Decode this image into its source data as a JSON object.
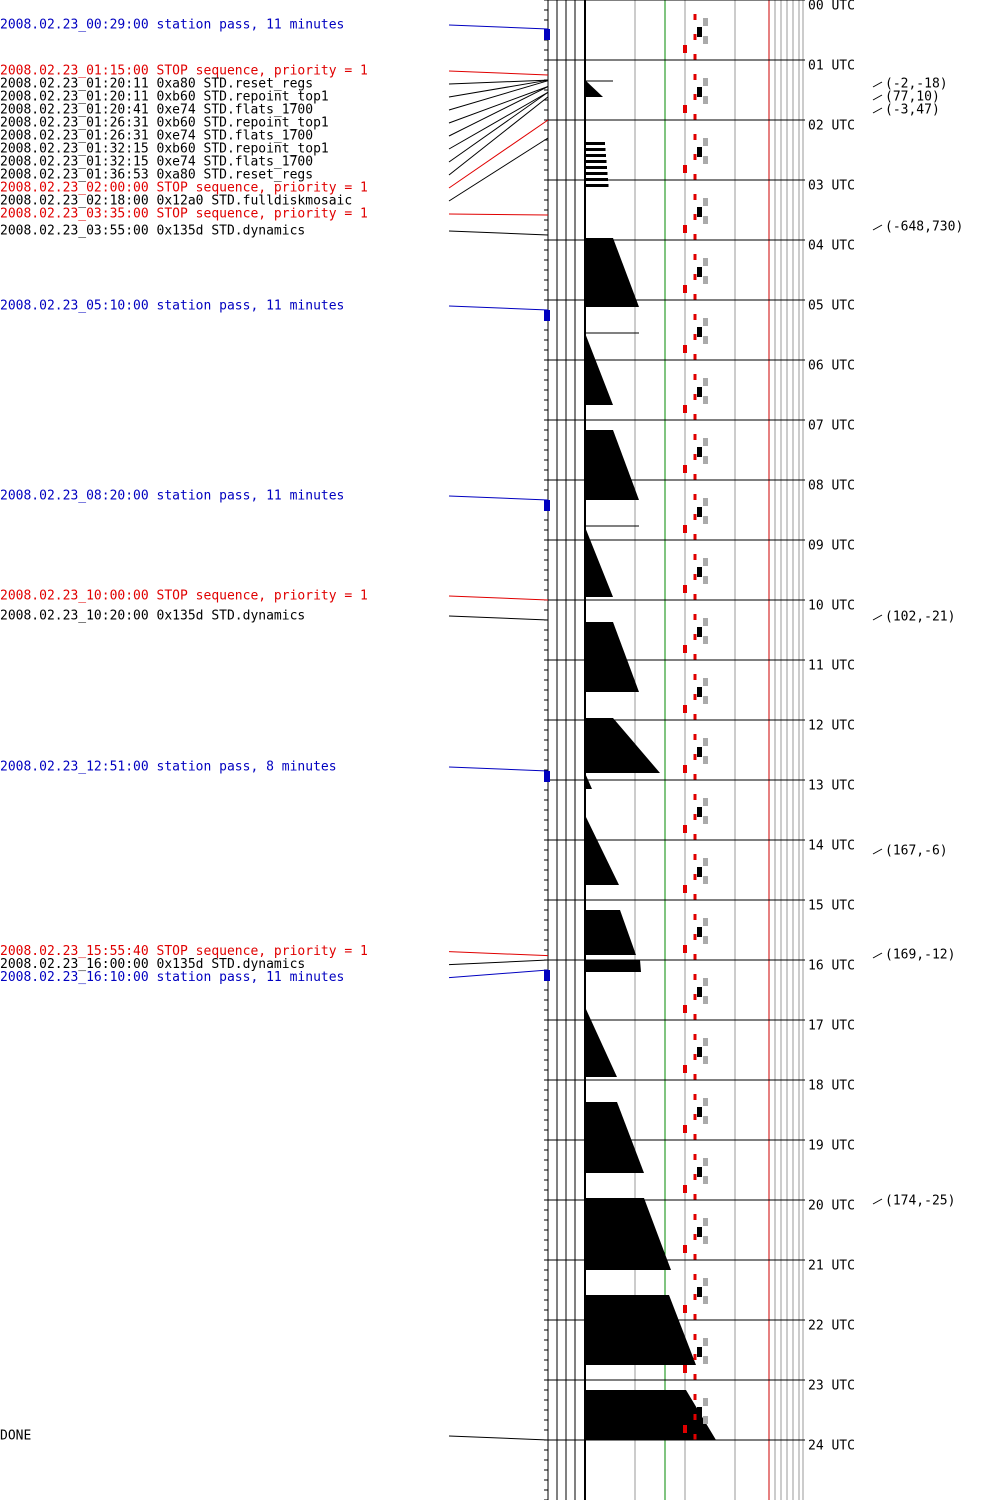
{
  "events": [
    {
      "text": "2008.02.23_00:29:00 station pass, 11 minutes",
      "color": "#0000c0"
    },
    {
      "text": "2008.02.23_01:15:00 STOP sequence, priority = 1",
      "color": "#e00000"
    },
    {
      "text": "2008.02.23_01:20:11  0xa80 STD.reset_regs",
      "color": "#000000"
    },
    {
      "text": "2008.02.23_01:20:11  0xb60 STD.repoint_top1",
      "color": "#000000"
    },
    {
      "text": "2008.02.23_01:20:41  0xe74 STD.flats_1700",
      "color": "#000000"
    },
    {
      "text": "2008.02.23_01:26:31  0xb60 STD.repoint_top1",
      "color": "#000000"
    },
    {
      "text": "2008.02.23_01:26:31  0xe74 STD.flats_1700",
      "color": "#000000"
    },
    {
      "text": "2008.02.23_01:32:15  0xb60 STD.repoint_top1",
      "color": "#000000"
    },
    {
      "text": "2008.02.23_01:32:15  0xe74 STD.flats_1700",
      "color": "#000000"
    },
    {
      "text": "2008.02.23_01:36:53  0xa80 STD.reset_regs",
      "color": "#000000"
    },
    {
      "text": "2008.02.23_02:00:00 STOP sequence, priority = 1",
      "color": "#e00000"
    },
    {
      "text": "2008.02.23_02:18:00 0x12a0 STD.fulldiskmosaic",
      "color": "#000000"
    },
    {
      "text": "2008.02.23_03:35:00 STOP sequence, priority = 1",
      "color": "#e00000"
    },
    {
      "text": "2008.02.23_03:55:00 0x135d STD.dynamics",
      "color": "#000000"
    },
    {
      "text": "2008.02.23_05:10:00 station pass, 11 minutes",
      "color": "#0000c0"
    },
    {
      "text": "2008.02.23_08:20:00 station pass, 11 minutes",
      "color": "#0000c0"
    },
    {
      "text": "2008.02.23_10:00:00 STOP sequence, priority = 1",
      "color": "#e00000"
    },
    {
      "text": "2008.02.23_10:20:00 0x135d STD.dynamics",
      "color": "#000000"
    },
    {
      "text": "2008.02.23_12:51:00 station pass, 8 minutes",
      "color": "#0000c0"
    },
    {
      "text": "2008.02.23_15:55:40 STOP sequence, priority = 1",
      "color": "#e00000"
    },
    {
      "text": "2008.02.23_16:00:00 0x135d STD.dynamics",
      "color": "#000000"
    },
    {
      "text": "2008.02.23_16:10:00 station pass, 11 minutes",
      "color": "#0000c0"
    },
    {
      "text": "DONE",
      "color": "#000000"
    }
  ],
  "hours": [
    "00 UTC",
    "01 UTC",
    "02 UTC",
    "03 UTC",
    "04 UTC",
    "05 UTC",
    "06 UTC",
    "07 UTC",
    "08 UTC",
    "09 UTC",
    "10 UTC",
    "11 UTC",
    "12 UTC",
    "13 UTC",
    "14 UTC",
    "15 UTC",
    "16 UTC",
    "17 UTC",
    "18 UTC",
    "19 UTC",
    "20 UTC",
    "21 UTC",
    "22 UTC",
    "23 UTC",
    "24 UTC"
  ],
  "pointings": [
    "(-2,-18)",
    "(77,10)",
    "(-3,47)",
    "(-648,730)",
    "(102,-21)",
    "(167,-6)",
    "(169,-12)",
    "(174,-25)"
  ]
}
